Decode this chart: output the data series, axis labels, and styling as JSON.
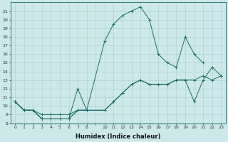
{
  "xlabel": "Humidex (Indice chaleur)",
  "bg_color": "#cce8e8",
  "line_color": "#1a6b6b",
  "grid_color": "#aacccc",
  "series": [
    {
      "x": [
        0,
        1,
        2,
        3,
        4,
        5,
        6,
        7,
        8
      ],
      "y": [
        10.5,
        9.5,
        9.5,
        8.5,
        8.5,
        8.5,
        8.5,
        12.0,
        9.5
      ]
    },
    {
      "x": [
        0,
        1,
        2,
        3,
        4,
        5,
        6,
        7,
        8,
        10,
        11,
        12,
        13,
        14,
        15,
        16,
        17,
        18,
        19,
        20,
        21,
        22,
        23
      ],
      "y": [
        10.5,
        9.5,
        9.5,
        8.5,
        8.5,
        8.5,
        8.5,
        9.5,
        9.5,
        9.5,
        10.5,
        11.5,
        12.5,
        13.0,
        12.5,
        12.5,
        12.5,
        13.0,
        13.0,
        13.0,
        13.5,
        13.0,
        13.5
      ]
    },
    {
      "x": [
        0,
        1,
        2,
        3,
        4,
        5,
        6,
        7,
        8,
        10,
        11,
        12,
        13,
        14,
        15,
        16,
        17,
        18,
        19,
        20,
        21,
        22,
        23
      ],
      "y": [
        10.5,
        9.5,
        9.5,
        8.5,
        8.5,
        8.5,
        8.5,
        9.5,
        9.5,
        9.5,
        10.5,
        11.5,
        12.5,
        13.0,
        12.5,
        12.5,
        12.5,
        13.0,
        13.0,
        10.5,
        13.0,
        14.5,
        13.5
      ]
    },
    {
      "x": [
        0,
        1,
        2,
        3,
        4,
        5,
        6,
        7,
        8,
        10,
        11,
        12,
        13,
        14,
        15,
        16,
        17,
        18,
        19,
        20,
        21
      ],
      "y": [
        10.5,
        9.5,
        9.5,
        9.0,
        9.0,
        9.0,
        9.0,
        9.5,
        9.5,
        17.5,
        19.5,
        20.5,
        21.0,
        21.5,
        20.0,
        16.0,
        15.0,
        14.5,
        18.0,
        16.0,
        15.0
      ]
    }
  ],
  "ylim": [
    8,
    22
  ],
  "yticks": [
    8,
    9,
    10,
    11,
    12,
    13,
    14,
    15,
    16,
    17,
    18,
    19,
    20,
    21
  ],
  "xtick_labels": [
    "0",
    "1",
    "2",
    "3",
    "4",
    "5",
    "6",
    "7",
    "8",
    "",
    "10",
    "11",
    "12",
    "13",
    "14",
    "15",
    "16",
    "17",
    "18",
    "19",
    "20",
    "21",
    "22",
    "23"
  ],
  "xtick_positions": [
    0,
    1,
    2,
    3,
    4,
    5,
    6,
    7,
    8,
    9,
    10,
    11,
    12,
    13,
    14,
    15,
    16,
    17,
    18,
    19,
    20,
    21,
    22,
    23
  ]
}
